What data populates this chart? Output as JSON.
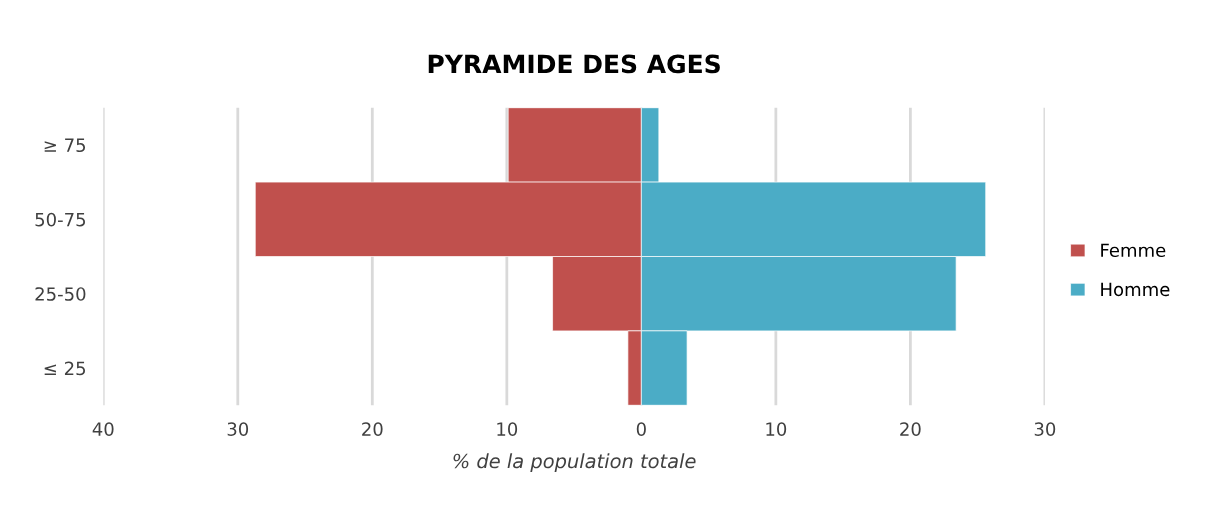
{
  "chart_data": {
    "type": "bar",
    "orientation": "horizontal",
    "stacked": true,
    "title": "PYRAMIDE DES AGES",
    "xlabel": "% de la population totale",
    "categories": [
      "≥ 75",
      "50-75",
      "25-50",
      "≤ 25"
    ],
    "series": [
      {
        "name": "Femme",
        "color": "#c0504d",
        "values": [
          -9.9,
          -28.7,
          -6.6,
          -1.0
        ]
      },
      {
        "name": "Homme",
        "color": "#4bacc6",
        "values": [
          1.3,
          25.6,
          23.4,
          3.4
        ]
      }
    ],
    "xlim": [
      -40,
      30
    ],
    "xticks": [
      {
        "value": -40,
        "label": "40"
      },
      {
        "value": -30,
        "label": "30"
      },
      {
        "value": -20,
        "label": "20"
      },
      {
        "value": -10,
        "label": "10"
      },
      0,
      10,
      20,
      30
    ],
    "grid": "x",
    "legend": "right"
  }
}
